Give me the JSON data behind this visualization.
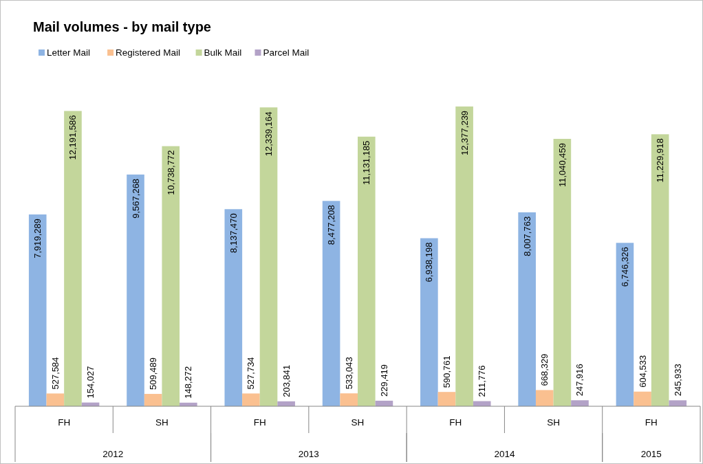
{
  "chart_data": {
    "type": "bar",
    "title": "Mail volumes - by mail type",
    "categories": [
      "FH",
      "SH",
      "FH",
      "SH",
      "FH",
      "SH",
      "FH"
    ],
    "annotations": [
      "2012",
      "2013",
      "2014",
      "2015"
    ],
    "series": [
      {
        "name": "Letter Mail",
        "color": "#8eb4e3",
        "values": [
          7919289,
          9567268,
          8137470,
          8477208,
          6938198,
          8007763,
          6746326
        ],
        "value_labels": [
          "7,919,289",
          "9,567,268",
          "8,137,470",
          "8,477,208",
          "6,938,198",
          "8,007,763",
          "6,746,326"
        ]
      },
      {
        "name": "Registered Mail",
        "color": "#fac090",
        "values": [
          527584,
          509489,
          527734,
          533043,
          590761,
          668329,
          604533
        ],
        "value_labels": [
          "527,584",
          "509,489",
          "527,734",
          "533,043",
          "590,761",
          "668,329",
          "604,533"
        ]
      },
      {
        "name": "Bulk Mail",
        "color": "#c3d69b",
        "values": [
          12191586,
          10738772,
          12339164,
          11131185,
          12377239,
          11040459,
          11229918
        ],
        "value_labels": [
          "12,191,586",
          "10,738,772",
          "12,339,164",
          "11,131,185",
          "12,377,239",
          "11,040,459",
          "11,229,918"
        ]
      },
      {
        "name": "Parcel Mail",
        "color": "#b3a2c7",
        "values": [
          154027,
          148272,
          203841,
          229419,
          211776,
          247916,
          245933
        ],
        "value_labels": [
          "154,027",
          "148,272",
          "203,841",
          "229,419",
          "211,776",
          "247,916",
          "245,933"
        ]
      }
    ],
    "legend": "top left",
    "grid": false
  }
}
